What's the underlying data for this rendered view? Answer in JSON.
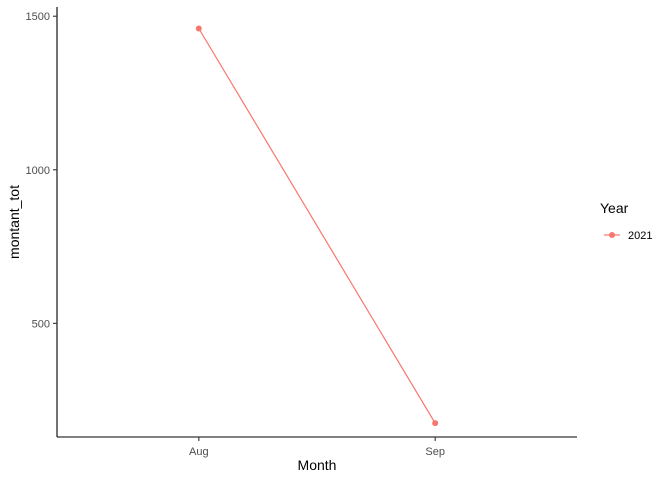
{
  "chart_data": {
    "type": "line",
    "title": "",
    "xlabel": "Month",
    "ylabel": "montant_tot",
    "categories": [
      "Aug",
      "Sep"
    ],
    "ylim": [
      130,
      1530
    ],
    "yticks": [
      500,
      1000,
      1500
    ],
    "ytick_labels": [
      "500",
      "1000",
      "1500"
    ],
    "grid": false,
    "legend_position": "right",
    "legend_title": "Year",
    "series": [
      {
        "name": "2021",
        "values": [
          1460,
          175
        ],
        "color": "#F8766D"
      }
    ]
  }
}
